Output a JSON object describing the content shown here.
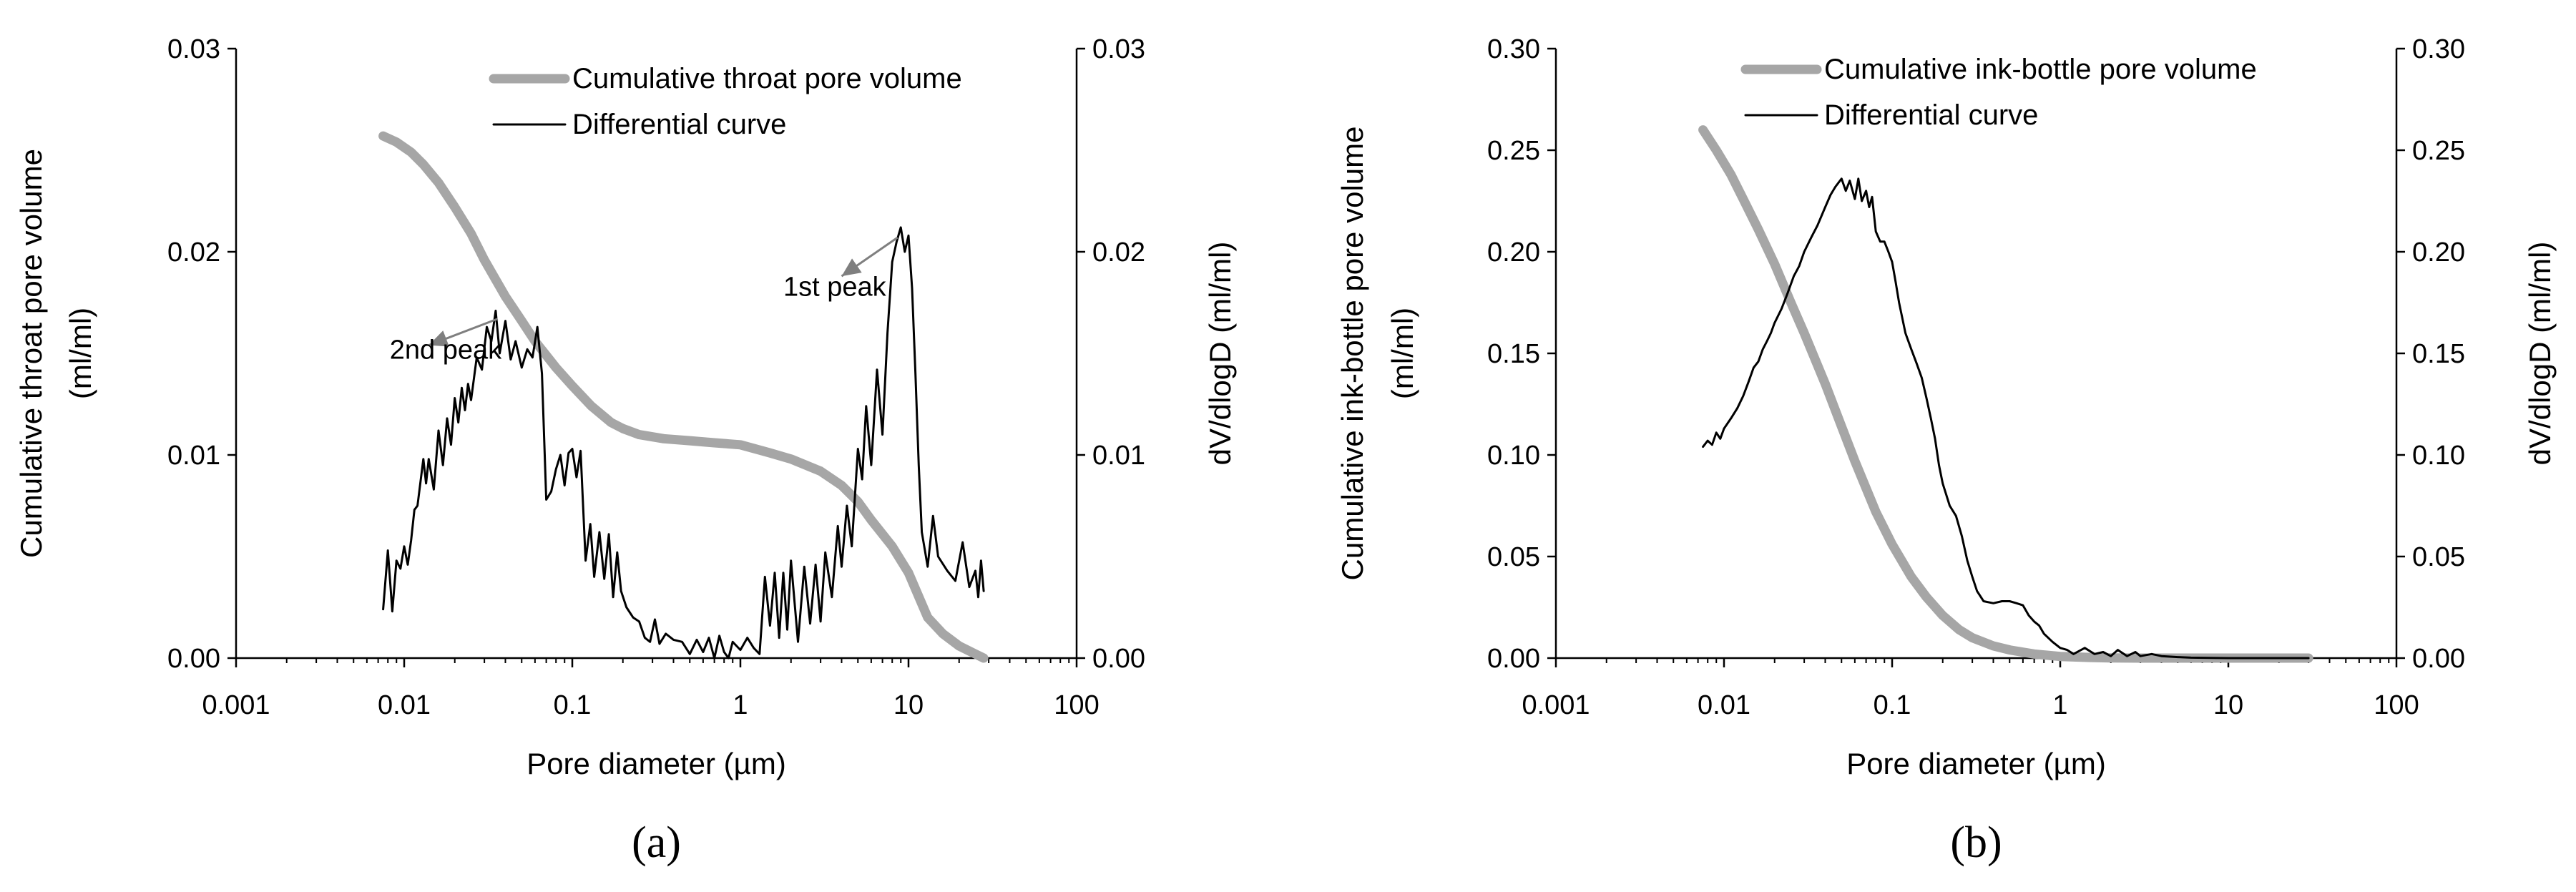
{
  "chart_data": [
    {
      "type": "line",
      "panel_label": "(a)",
      "xscale": "log",
      "xlim": [
        0.001,
        100
      ],
      "ylim": [
        0,
        0.03
      ],
      "y2lim": [
        0,
        0.03
      ],
      "xlabel": "Pore diameter (µm)",
      "ylabel_line1": "Cumulative throat pore volume",
      "ylabel_line2": "(ml/ml)",
      "y2label": "dV/dlogD (ml/ml)",
      "xticks": [
        0.001,
        0.01,
        0.1,
        1,
        10,
        100
      ],
      "xtick_labels": [
        "0.001",
        "0.01",
        "0.1",
        "1",
        "10",
        "100"
      ],
      "yticks": [
        0,
        0.01,
        0.02,
        0.03
      ],
      "ytick_labels": [
        "0.00",
        "0.01",
        "0.02",
        "0.03"
      ],
      "y2tick_labels": [
        "0.00",
        "0.01",
        "0.02",
        "0.03"
      ],
      "legend_position": "top-right",
      "series": [
        {
          "name": "Cumulative throat pore volume",
          "color": "#a6a6a6",
          "axis": "left",
          "x": [
            0.0075,
            0.009,
            0.011,
            0.013,
            0.016,
            0.02,
            0.025,
            0.03,
            0.04,
            0.05,
            0.06,
            0.08,
            0.1,
            0.13,
            0.17,
            0.2,
            0.25,
            0.35,
            0.5,
            0.7,
            1.0,
            1.5,
            2.0,
            3.0,
            4.0,
            5.0,
            6.0,
            8.0,
            10,
            13,
            16,
            20,
            25,
            28
          ],
          "values": [
            0.0257,
            0.0254,
            0.0249,
            0.0243,
            0.0234,
            0.0222,
            0.0209,
            0.0196,
            0.0178,
            0.0166,
            0.0156,
            0.0143,
            0.0134,
            0.0124,
            0.0116,
            0.0113,
            0.011,
            0.0108,
            0.0107,
            0.0106,
            0.0105,
            0.0101,
            0.0098,
            0.0092,
            0.0085,
            0.0077,
            0.0068,
            0.0055,
            0.0042,
            0.002,
            0.0012,
            0.0006,
            0.0002,
            0.0
          ]
        },
        {
          "name": "Differential curve",
          "color": "#000000",
          "axis": "right",
          "x": [
            0.0075,
            0.008,
            0.0085,
            0.009,
            0.0095,
            0.01,
            0.0105,
            0.011,
            0.0115,
            0.012,
            0.013,
            0.0135,
            0.014,
            0.015,
            0.016,
            0.017,
            0.018,
            0.019,
            0.02,
            0.021,
            0.022,
            0.023,
            0.024,
            0.025,
            0.027,
            0.029,
            0.031,
            0.033,
            0.035,
            0.037,
            0.04,
            0.043,
            0.046,
            0.05,
            0.054,
            0.058,
            0.062,
            0.066,
            0.07,
            0.075,
            0.08,
            0.085,
            0.09,
            0.095,
            0.1,
            0.106,
            0.112,
            0.12,
            0.128,
            0.135,
            0.145,
            0.155,
            0.165,
            0.175,
            0.185,
            0.195,
            0.21,
            0.23,
            0.25,
            0.27,
            0.29,
            0.31,
            0.33,
            0.36,
            0.4,
            0.45,
            0.5,
            0.55,
            0.6,
            0.65,
            0.7,
            0.75,
            0.8,
            0.85,
            0.9,
            1.0,
            1.1,
            1.2,
            1.3,
            1.4,
            1.5,
            1.6,
            1.7,
            1.8,
            1.9,
            2.0,
            2.2,
            2.4,
            2.6,
            2.8,
            3.0,
            3.2,
            3.5,
            3.8,
            4.0,
            4.3,
            4.6,
            5.0,
            5.3,
            5.6,
            6.0,
            6.5,
            7.0,
            7.5,
            8.0,
            8.5,
            9.0,
            9.5,
            10.0,
            10.5,
            11.0,
            11.5,
            12.0,
            13.0,
            14.0,
            15.0,
            17.0,
            19.0,
            21.0,
            23.0,
            25.0,
            26.0,
            27.0,
            28.0
          ],
          "values": [
            0.0024,
            0.0053,
            0.0023,
            0.0048,
            0.0044,
            0.0055,
            0.0046,
            0.0058,
            0.0073,
            0.0075,
            0.0098,
            0.0086,
            0.0098,
            0.0083,
            0.0112,
            0.0095,
            0.0118,
            0.0105,
            0.0128,
            0.0116,
            0.0133,
            0.0122,
            0.0135,
            0.0127,
            0.0148,
            0.0142,
            0.0163,
            0.0156,
            0.0171,
            0.015,
            0.0166,
            0.0147,
            0.0156,
            0.0143,
            0.0152,
            0.0148,
            0.0163,
            0.014,
            0.0078,
            0.0082,
            0.0093,
            0.01,
            0.0085,
            0.0101,
            0.0103,
            0.0089,
            0.0102,
            0.0048,
            0.0066,
            0.004,
            0.0062,
            0.0039,
            0.0061,
            0.003,
            0.0052,
            0.0033,
            0.0025,
            0.002,
            0.0018,
            0.001,
            0.0008,
            0.0019,
            0.0007,
            0.0012,
            0.0009,
            0.0008,
            0.0002,
            0.0009,
            0.0003,
            0.001,
            0.0,
            0.0011,
            0.0003,
            0.0,
            0.0008,
            0.0004,
            0.001,
            0.0005,
            0.0002,
            0.004,
            0.0016,
            0.0042,
            0.001,
            0.0042,
            0.0014,
            0.0048,
            0.0008,
            0.0045,
            0.0017,
            0.0046,
            0.0018,
            0.0052,
            0.003,
            0.0065,
            0.0045,
            0.0075,
            0.0055,
            0.0103,
            0.0088,
            0.0124,
            0.0095,
            0.0142,
            0.011,
            0.016,
            0.0195,
            0.0205,
            0.0212,
            0.02,
            0.0208,
            0.0182,
            0.014,
            0.0095,
            0.0062,
            0.0045,
            0.007,
            0.005,
            0.0043,
            0.0038,
            0.0057,
            0.0035,
            0.0043,
            0.003,
            0.0048,
            0.0033
          ]
        }
      ],
      "annotations": [
        {
          "text": "1st peak",
          "label_x": 1.8,
          "label_y": 0.0183,
          "arrow_from": [
            4.0,
            0.0188
          ],
          "arrow_to": [
            8.6,
            0.0207
          ]
        },
        {
          "text": "2nd peak",
          "label_x": 0.0082,
          "label_y": 0.0152,
          "arrow_from": [
            0.014,
            0.0154
          ],
          "arrow_to": [
            0.036,
            0.0167
          ]
        }
      ]
    },
    {
      "type": "line",
      "panel_label": "(b)",
      "xscale": "log",
      "xlim": [
        0.001,
        100
      ],
      "ylim": [
        0,
        0.3
      ],
      "y2lim": [
        0,
        0.3
      ],
      "xlabel": "Pore diameter (µm)",
      "ylabel_line1": "Cumulative ink-bottle pore volume",
      "ylabel_line2": "(ml/ml)",
      "y2label": "dV/dlogD (ml/ml)",
      "xticks": [
        0.001,
        0.01,
        0.1,
        1,
        10,
        100
      ],
      "xtick_labels": [
        "0.001",
        "0.01",
        "0.1",
        "1",
        "10",
        "100"
      ],
      "yticks": [
        0,
        0.05,
        0.1,
        0.15,
        0.2,
        0.25,
        0.3
      ],
      "ytick_labels": [
        "0.00",
        "0.05",
        "0.10",
        "0.15",
        "0.20",
        "0.25",
        "0.30"
      ],
      "y2tick_labels": [
        "0.00",
        "0.05",
        "0.10",
        "0.15",
        "0.20",
        "0.25",
        "0.30"
      ],
      "legend_position": "top-right",
      "series": [
        {
          "name": "Cumulative ink-bottle pore volume",
          "color": "#a6a6a6",
          "axis": "left",
          "x": [
            0.0075,
            0.009,
            0.011,
            0.013,
            0.016,
            0.02,
            0.025,
            0.03,
            0.04,
            0.05,
            0.06,
            0.08,
            0.1,
            0.13,
            0.16,
            0.2,
            0.25,
            0.3,
            0.4,
            0.5,
            0.7,
            1.0,
            1.5,
            2,
            3,
            5,
            10,
            20,
            30
          ],
          "values": [
            0.26,
            0.25,
            0.238,
            0.226,
            0.211,
            0.194,
            0.175,
            0.16,
            0.135,
            0.114,
            0.097,
            0.072,
            0.056,
            0.04,
            0.03,
            0.021,
            0.014,
            0.01,
            0.006,
            0.004,
            0.002,
            0.0008,
            0.0003,
            0.0001,
            0,
            0,
            0,
            0,
            0
          ]
        },
        {
          "name": "Differential curve",
          "color": "#000000",
          "axis": "right",
          "x": [
            0.0075,
            0.008,
            0.0085,
            0.009,
            0.0095,
            0.01,
            0.011,
            0.012,
            0.013,
            0.014,
            0.015,
            0.016,
            0.017,
            0.018,
            0.019,
            0.02,
            0.022,
            0.024,
            0.026,
            0.028,
            0.03,
            0.033,
            0.036,
            0.04,
            0.043,
            0.046,
            0.05,
            0.053,
            0.056,
            0.06,
            0.063,
            0.066,
            0.07,
            0.073,
            0.076,
            0.08,
            0.085,
            0.09,
            0.095,
            0.1,
            0.105,
            0.11,
            0.12,
            0.13,
            0.14,
            0.15,
            0.16,
            0.17,
            0.18,
            0.19,
            0.2,
            0.22,
            0.24,
            0.26,
            0.28,
            0.3,
            0.32,
            0.35,
            0.4,
            0.45,
            0.5,
            0.55,
            0.6,
            0.65,
            0.7,
            0.75,
            0.8,
            0.9,
            1.0,
            1.1,
            1.2,
            1.4,
            1.6,
            1.8,
            2.0,
            2.2,
            2.5,
            2.8,
            3.0,
            3.5,
            4.0,
            5.0,
            6.0,
            8.0,
            10.0,
            15.0,
            20.0,
            25.0,
            30.0
          ],
          "values": [
            0.104,
            0.107,
            0.105,
            0.111,
            0.108,
            0.113,
            0.118,
            0.123,
            0.129,
            0.136,
            0.143,
            0.146,
            0.152,
            0.156,
            0.16,
            0.165,
            0.172,
            0.18,
            0.188,
            0.193,
            0.2,
            0.207,
            0.213,
            0.222,
            0.228,
            0.232,
            0.236,
            0.23,
            0.235,
            0.226,
            0.236,
            0.225,
            0.23,
            0.222,
            0.227,
            0.21,
            0.205,
            0.205,
            0.2,
            0.195,
            0.185,
            0.175,
            0.16,
            0.152,
            0.145,
            0.138,
            0.128,
            0.118,
            0.108,
            0.095,
            0.086,
            0.075,
            0.07,
            0.06,
            0.048,
            0.04,
            0.033,
            0.028,
            0.027,
            0.028,
            0.028,
            0.027,
            0.026,
            0.021,
            0.018,
            0.016,
            0.012,
            0.008,
            0.005,
            0.004,
            0.002,
            0.005,
            0.002,
            0.003,
            0.001,
            0.004,
            0.001,
            0.003,
            0.001,
            0.002,
            0.001,
            0.0005,
            0.0002,
            0.0001,
            0,
            0,
            0,
            0,
            0
          ]
        }
      ],
      "annotations": []
    }
  ]
}
